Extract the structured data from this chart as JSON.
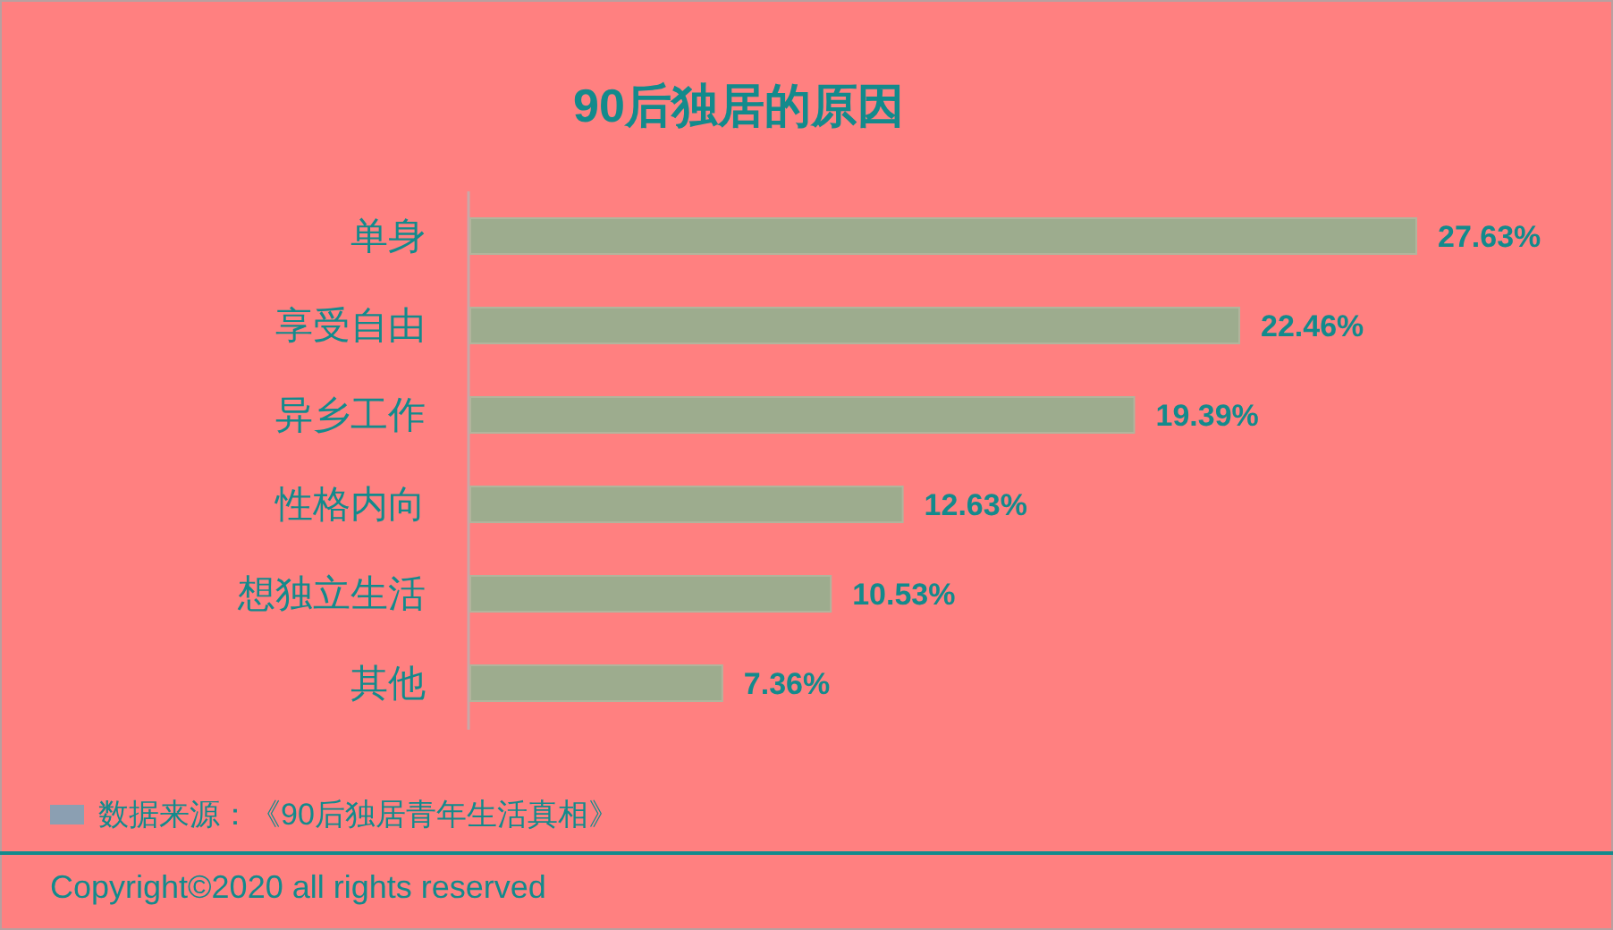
{
  "chart_data": {
    "type": "bar",
    "orientation": "horizontal",
    "title": "90后独居的原因",
    "categories": [
      "单身",
      "享受自由",
      "异乡工作",
      "性格内向",
      "想独立生活",
      "其他"
    ],
    "values": [
      27.63,
      22.46,
      19.39,
      12.63,
      10.53,
      7.36
    ],
    "value_labels": [
      "27.63%",
      "22.46%",
      "19.39%",
      "12.63%",
      "10.53%",
      "7.36%"
    ],
    "color": "#9dac8e",
    "tick_labels": "y",
    "annotations": [
      "数据来源：《90后独居青年生活真相》",
      "Copyright©2020 all rights reserved"
    ]
  }
}
